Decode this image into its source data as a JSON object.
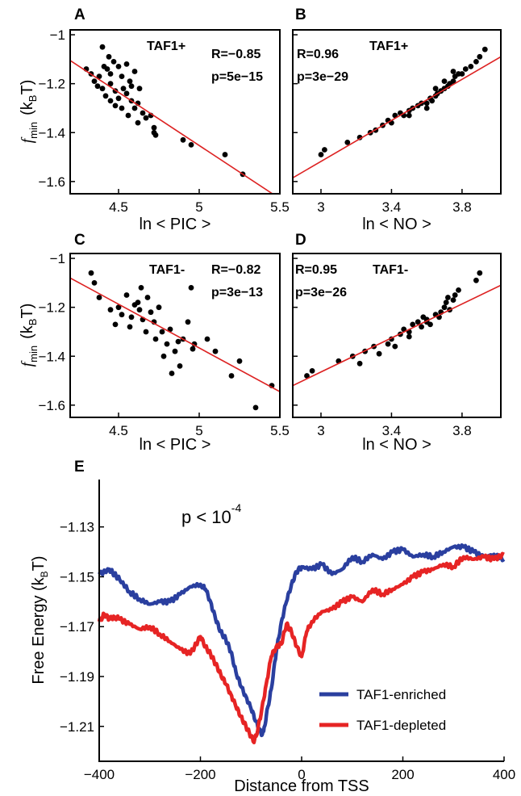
{
  "colors": {
    "point": "#000000",
    "fit_line": "#dd2222",
    "enriched": "#2a3f9f",
    "depleted": "#e62424",
    "axis": "#000000"
  },
  "chart_data": [
    {
      "panel": "A",
      "type": "scatter",
      "label": "TAF1+",
      "stat_r": "R=−0.85",
      "stat_p": "p=5e−15",
      "xlabel": "ln < PIC >",
      "ylabel_main": "f",
      "ylabel_sub": "min",
      "ylabel_unit": "(k",
      "ylabel_unit_sub": "B",
      "ylabel_unit_end": "T)",
      "xlim": [
        4.2,
        5.5
      ],
      "ylim": [
        -1.65,
        -0.98
      ],
      "xticks": [
        {
          "v": 4.5,
          "label": "4.5"
        },
        {
          "v": 5,
          "label": "5"
        },
        {
          "v": 5.5,
          "label": "5.5"
        }
      ],
      "yticks": [
        {
          "v": -1,
          "label": "−1"
        },
        {
          "v": -1.2,
          "label": "−1.2"
        },
        {
          "v": -1.4,
          "label": "−1.4"
        },
        {
          "v": -1.6,
          "label": "−1.6"
        }
      ],
      "fit": [
        [
          4.2,
          -1.105
        ],
        [
          5.5,
          -1.67
        ]
      ],
      "points": [
        [
          4.3,
          -1.14
        ],
        [
          4.33,
          -1.16
        ],
        [
          4.35,
          -1.19
        ],
        [
          4.37,
          -1.21
        ],
        [
          4.38,
          -1.17
        ],
        [
          4.4,
          -1.05
        ],
        [
          4.4,
          -1.22
        ],
        [
          4.42,
          -1.25
        ],
        [
          4.43,
          -1.14
        ],
        [
          4.44,
          -1.09
        ],
        [
          4.45,
          -1.2
        ],
        [
          4.45,
          -1.27
        ],
        [
          4.47,
          -1.11
        ],
        [
          4.48,
          -1.23
        ],
        [
          4.48,
          -1.29
        ],
        [
          4.5,
          -1.13
        ],
        [
          4.5,
          -1.26
        ],
        [
          4.52,
          -1.17
        ],
        [
          4.52,
          -1.3
        ],
        [
          4.53,
          -1.22
        ],
        [
          4.55,
          -1.12
        ],
        [
          4.55,
          -1.24
        ],
        [
          4.56,
          -1.33
        ],
        [
          4.57,
          -1.19
        ],
        [
          4.58,
          -1.27
        ],
        [
          4.6,
          -1.15
        ],
        [
          4.6,
          -1.3
        ],
        [
          4.62,
          -1.28
        ],
        [
          4.62,
          -1.36
        ],
        [
          4.63,
          -1.22
        ],
        [
          4.65,
          -1.32
        ],
        [
          4.67,
          -1.34
        ],
        [
          4.7,
          -1.33
        ],
        [
          4.72,
          -1.38
        ],
        [
          4.72,
          -1.4
        ],
        [
          4.73,
          -1.41
        ],
        [
          4.9,
          -1.43
        ],
        [
          4.95,
          -1.45
        ],
        [
          5.16,
          -1.49
        ],
        [
          5.27,
          -1.57
        ],
        [
          4.45,
          -1.16
        ],
        [
          4.58,
          -1.21
        ],
        [
          4.41,
          -1.13
        ]
      ]
    },
    {
      "panel": "B",
      "type": "scatter",
      "label": "TAF1+",
      "stat_r": "R=0.96",
      "stat_p": "p=3e−29",
      "xlabel": "ln < NO >",
      "xlim": [
        2.84,
        4.02
      ],
      "ylim": [
        -1.65,
        -0.98
      ],
      "xticks": [
        {
          "v": 3,
          "label": "3"
        },
        {
          "v": 3.4,
          "label": "3.4"
        },
        {
          "v": 3.8,
          "label": "3.8"
        }
      ],
      "yticks": [
        {
          "v": -1,
          "label": ""
        },
        {
          "v": -1.2,
          "label": ""
        },
        {
          "v": -1.4,
          "label": ""
        },
        {
          "v": -1.6,
          "label": ""
        }
      ],
      "fit": [
        [
          2.84,
          -1.585
        ],
        [
          4.02,
          -1.09
        ]
      ],
      "points": [
        [
          3.0,
          -1.49
        ],
        [
          3.02,
          -1.47
        ],
        [
          3.15,
          -1.44
        ],
        [
          3.22,
          -1.42
        ],
        [
          3.28,
          -1.4
        ],
        [
          3.31,
          -1.39
        ],
        [
          3.35,
          -1.37
        ],
        [
          3.38,
          -1.35
        ],
        [
          3.4,
          -1.36
        ],
        [
          3.42,
          -1.33
        ],
        [
          3.45,
          -1.32
        ],
        [
          3.47,
          -1.33
        ],
        [
          3.5,
          -1.31
        ],
        [
          3.52,
          -1.3
        ],
        [
          3.55,
          -1.29
        ],
        [
          3.57,
          -1.28
        ],
        [
          3.6,
          -1.28
        ],
        [
          3.62,
          -1.26
        ],
        [
          3.63,
          -1.27
        ],
        [
          3.65,
          -1.25
        ],
        [
          3.66,
          -1.24
        ],
        [
          3.68,
          -1.23
        ],
        [
          3.7,
          -1.22
        ],
        [
          3.72,
          -1.21
        ],
        [
          3.73,
          -1.2
        ],
        [
          3.75,
          -1.19
        ],
        [
          3.76,
          -1.17
        ],
        [
          3.78,
          -1.16
        ],
        [
          3.8,
          -1.16
        ],
        [
          3.82,
          -1.14
        ],
        [
          3.85,
          -1.13
        ],
        [
          3.88,
          -1.11
        ],
        [
          3.9,
          -1.09
        ],
        [
          3.93,
          -1.06
        ],
        [
          3.6,
          -1.3
        ],
        [
          3.65,
          -1.22
        ],
        [
          3.7,
          -1.19
        ],
        [
          3.75,
          -1.15
        ],
        [
          3.5,
          -1.33
        ]
      ]
    },
    {
      "panel": "C",
      "type": "scatter",
      "label": "TAF1-",
      "stat_r": "R=−0.82",
      "stat_p": "p=3e−13",
      "xlabel": "ln < PIC >",
      "ylabel_main": "f",
      "ylabel_sub": "min",
      "ylabel_unit": "(k",
      "ylabel_unit_sub": "B",
      "ylabel_unit_end": "T)",
      "xlim": [
        4.2,
        5.5
      ],
      "ylim": [
        -1.65,
        -0.98
      ],
      "xticks": [
        {
          "v": 4.5,
          "label": "4.5"
        },
        {
          "v": 5,
          "label": "5"
        },
        {
          "v": 5.5,
          "label": "5.5"
        }
      ],
      "yticks": [
        {
          "v": -1,
          "label": "−1"
        },
        {
          "v": -1.2,
          "label": "−1.2"
        },
        {
          "v": -1.4,
          "label": "−1.4"
        },
        {
          "v": -1.6,
          "label": "−1.6"
        }
      ],
      "fit": [
        [
          4.2,
          -1.08
        ],
        [
          5.5,
          -1.545
        ]
      ],
      "points": [
        [
          4.33,
          -1.06
        ],
        [
          4.35,
          -1.1
        ],
        [
          4.38,
          -1.16
        ],
        [
          4.45,
          -1.21
        ],
        [
          4.48,
          -1.27
        ],
        [
          4.5,
          -1.2
        ],
        [
          4.52,
          -1.23
        ],
        [
          4.55,
          -1.15
        ],
        [
          4.57,
          -1.28
        ],
        [
          4.58,
          -1.24
        ],
        [
          4.6,
          -1.19
        ],
        [
          4.62,
          -1.18
        ],
        [
          4.63,
          -1.21
        ],
        [
          4.64,
          -1.12
        ],
        [
          4.65,
          -1.25
        ],
        [
          4.67,
          -1.3
        ],
        [
          4.68,
          -1.16
        ],
        [
          4.7,
          -1.22
        ],
        [
          4.72,
          -1.26
        ],
        [
          4.73,
          -1.33
        ],
        [
          4.75,
          -1.2
        ],
        [
          4.77,
          -1.3
        ],
        [
          4.78,
          -1.4
        ],
        [
          4.8,
          -1.35
        ],
        [
          4.82,
          -1.29
        ],
        [
          4.83,
          -1.47
        ],
        [
          4.85,
          -1.38
        ],
        [
          4.87,
          -1.34
        ],
        [
          4.88,
          -1.44
        ],
        [
          4.9,
          -1.33
        ],
        [
          4.93,
          -1.26
        ],
        [
          4.95,
          -1.12
        ],
        [
          4.96,
          -1.37
        ],
        [
          4.97,
          -1.35
        ],
        [
          5.05,
          -1.33
        ],
        [
          5.1,
          -1.38
        ],
        [
          5.2,
          -1.48
        ],
        [
          5.25,
          -1.42
        ],
        [
          5.35,
          -1.61
        ],
        [
          5.45,
          -1.52
        ]
      ]
    },
    {
      "panel": "D",
      "type": "scatter",
      "label": "TAF1-",
      "stat_r": "R=0.95",
      "stat_p": "p=3e−26",
      "xlabel": "ln < NO >",
      "xlim": [
        2.84,
        4.02
      ],
      "ylim": [
        -1.65,
        -0.98
      ],
      "xticks": [
        {
          "v": 3,
          "label": "3"
        },
        {
          "v": 3.4,
          "label": "3.4"
        },
        {
          "v": 3.8,
          "label": "3.8"
        }
      ],
      "yticks": [
        {
          "v": -1,
          "label": ""
        },
        {
          "v": -1.2,
          "label": ""
        },
        {
          "v": -1.4,
          "label": ""
        },
        {
          "v": -1.6,
          "label": ""
        }
      ],
      "fit": [
        [
          2.84,
          -1.52
        ],
        [
          4.02,
          -1.11
        ]
      ],
      "points": [
        [
          2.92,
          -1.48
        ],
        [
          2.95,
          -1.46
        ],
        [
          3.1,
          -1.42
        ],
        [
          3.18,
          -1.4
        ],
        [
          3.22,
          -1.43
        ],
        [
          3.25,
          -1.38
        ],
        [
          3.3,
          -1.36
        ],
        [
          3.33,
          -1.39
        ],
        [
          3.38,
          -1.35
        ],
        [
          3.4,
          -1.33
        ],
        [
          3.42,
          -1.36
        ],
        [
          3.45,
          -1.31
        ],
        [
          3.47,
          -1.29
        ],
        [
          3.5,
          -1.32
        ],
        [
          3.52,
          -1.27
        ],
        [
          3.55,
          -1.26
        ],
        [
          3.57,
          -1.28
        ],
        [
          3.58,
          -1.24
        ],
        [
          3.6,
          -1.25
        ],
        [
          3.62,
          -1.27
        ],
        [
          3.65,
          -1.23
        ],
        [
          3.67,
          -1.24
        ],
        [
          3.7,
          -1.2
        ],
        [
          3.71,
          -1.18
        ],
        [
          3.72,
          -1.16
        ],
        [
          3.73,
          -1.21
        ],
        [
          3.75,
          -1.17
        ],
        [
          3.76,
          -1.15
        ],
        [
          3.78,
          -1.13
        ],
        [
          3.88,
          -1.09
        ],
        [
          3.9,
          -1.06
        ],
        [
          3.5,
          -1.3
        ],
        [
          3.6,
          -1.26
        ],
        [
          3.68,
          -1.22
        ]
      ]
    },
    {
      "panel": "E",
      "type": "line",
      "annotation": "p < 10",
      "annotation_exp": "-4",
      "xlabel": "Distance from TSS",
      "ylabel": "Free Energy  (k",
      "ylabel_sub": "B",
      "ylabel_end": "T)",
      "xlim": [
        -400,
        400
      ],
      "ylim": [
        -1.224,
        -1.111
      ],
      "xticks": [
        {
          "v": -400,
          "label": "−400"
        },
        {
          "v": -200,
          "label": "−200"
        },
        {
          "v": 0,
          "label": "0"
        },
        {
          "v": 200,
          "label": "200"
        },
        {
          "v": 400,
          "label": "400"
        }
      ],
      "yticks": [
        {
          "v": -1.13,
          "label": "−1.13"
        },
        {
          "v": -1.15,
          "label": "−1.15"
        },
        {
          "v": -1.17,
          "label": "−1.17"
        },
        {
          "v": -1.19,
          "label": "−1.19"
        },
        {
          "v": -1.21,
          "label": "−1.21"
        }
      ],
      "series": [
        {
          "name": "TAF1-enriched",
          "color": "#2a3f9f",
          "x": [
            -400,
            -380,
            -370,
            -360,
            -340,
            -320,
            -300,
            -280,
            -260,
            -240,
            -220,
            -200,
            -190,
            -180,
            -170,
            -160,
            -150,
            -140,
            -130,
            -120,
            -110,
            -100,
            -90,
            -80,
            -75,
            -70,
            -60,
            -50,
            -40,
            -30,
            -20,
            -10,
            0,
            20,
            40,
            60,
            80,
            100,
            120,
            140,
            160,
            180,
            200,
            220,
            240,
            260,
            280,
            300,
            320,
            340,
            360,
            380,
            400
          ],
          "y": [
            -1.149,
            -1.147,
            -1.149,
            -1.151,
            -1.156,
            -1.159,
            -1.161,
            -1.16,
            -1.16,
            -1.157,
            -1.154,
            -1.153,
            -1.155,
            -1.16,
            -1.167,
            -1.172,
            -1.175,
            -1.18,
            -1.188,
            -1.194,
            -1.198,
            -1.203,
            -1.208,
            -1.213,
            -1.212,
            -1.206,
            -1.195,
            -1.18,
            -1.168,
            -1.16,
            -1.153,
            -1.148,
            -1.146,
            -1.147,
            -1.145,
            -1.149,
            -1.147,
            -1.142,
            -1.144,
            -1.141,
            -1.143,
            -1.14,
            -1.139,
            -1.142,
            -1.141,
            -1.142,
            -1.14,
            -1.138,
            -1.138,
            -1.14,
            -1.142,
            -1.141,
            -1.143
          ]
        },
        {
          "name": "TAF1-depleted",
          "color": "#e62424",
          "x": [
            -400,
            -390,
            -380,
            -370,
            -360,
            -340,
            -320,
            -300,
            -280,
            -260,
            -240,
            -220,
            -200,
            -190,
            -180,
            -170,
            -160,
            -150,
            -140,
            -130,
            -120,
            -110,
            -100,
            -95,
            -90,
            -80,
            -70,
            -60,
            -50,
            -40,
            -30,
            -20,
            -10,
            0,
            10,
            20,
            40,
            60,
            80,
            100,
            120,
            140,
            160,
            180,
            200,
            220,
            240,
            260,
            280,
            300,
            320,
            340,
            360,
            380,
            400
          ],
          "y": [
            -1.168,
            -1.165,
            -1.167,
            -1.166,
            -1.167,
            -1.169,
            -1.171,
            -1.17,
            -1.173,
            -1.176,
            -1.179,
            -1.181,
            -1.174,
            -1.178,
            -1.181,
            -1.185,
            -1.189,
            -1.193,
            -1.197,
            -1.202,
            -1.206,
            -1.21,
            -1.214,
            -1.216,
            -1.214,
            -1.205,
            -1.193,
            -1.182,
            -1.178,
            -1.177,
            -1.169,
            -1.172,
            -1.178,
            -1.182,
            -1.172,
            -1.168,
            -1.164,
            -1.163,
            -1.16,
            -1.158,
            -1.16,
            -1.155,
            -1.157,
            -1.155,
            -1.153,
            -1.15,
            -1.148,
            -1.147,
            -1.145,
            -1.146,
            -1.142,
            -1.143,
            -1.142,
            -1.143,
            -1.141
          ]
        }
      ]
    }
  ]
}
